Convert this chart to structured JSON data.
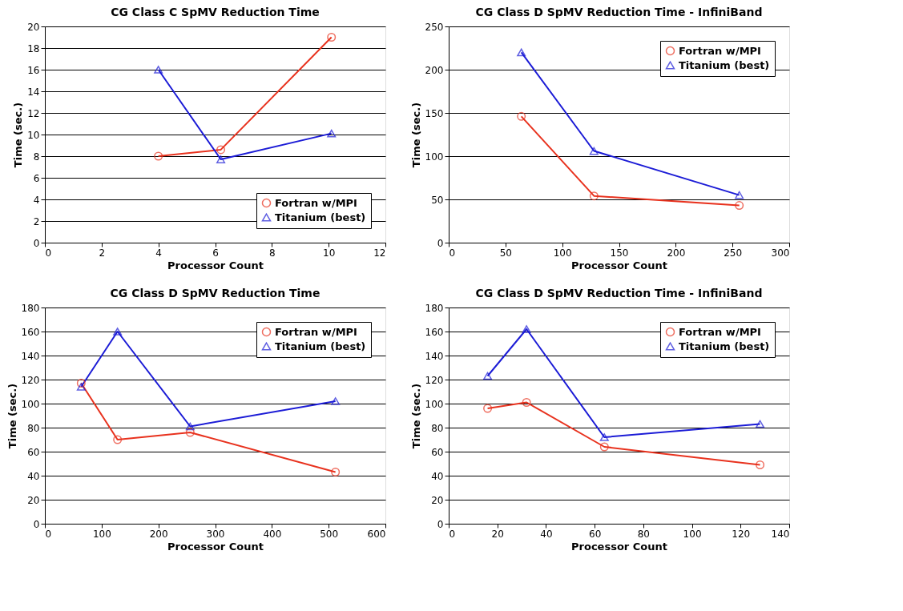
{
  "chart_data": [
    {
      "type": "line",
      "title": "CG Class C SpMV Reduction Time",
      "xlabel": "Processor Count",
      "ylabel": "Time (sec.)",
      "xlim": [
        0,
        12
      ],
      "xticks": [
        0,
        2,
        4,
        6,
        8,
        10,
        12
      ],
      "ylim": [
        0,
        20
      ],
      "yticks": [
        0,
        2,
        4,
        6,
        8,
        10,
        12,
        14,
        16,
        18,
        20
      ],
      "grid": "y",
      "legend": "bottom right",
      "line_style": "solid",
      "series": [
        {
          "name": "Fortran w/MPI",
          "color": "#e8321e",
          "marker": "circle",
          "x": [
            4,
            6.2,
            10.1
          ],
          "values": [
            8.0,
            8.6,
            19.0
          ]
        },
        {
          "name": "Titanium (best)",
          "color": "#1c1cd6",
          "marker": "triangle",
          "x": [
            4,
            6.2,
            10.1
          ],
          "values": [
            16.0,
            7.7,
            10.1
          ]
        }
      ]
    },
    {
      "type": "line",
      "title": "CG Class D SpMV Reduction Time - InfiniBand",
      "xlabel": "Processor Count",
      "ylabel": "Time (sec.)",
      "xlim": [
        0,
        300
      ],
      "xticks": [
        0,
        50,
        100,
        150,
        200,
        250,
        300
      ],
      "ylim": [
        0,
        250
      ],
      "yticks": [
        0,
        50,
        100,
        150,
        200,
        250
      ],
      "grid": "y",
      "legend": "top right",
      "line_style": "solid",
      "series": [
        {
          "name": "Fortran w/MPI",
          "color": "#e8321e",
          "marker": "circle",
          "x": [
            64,
            128,
            256
          ],
          "values": [
            146,
            54,
            43
          ]
        },
        {
          "name": "Titanium (best)",
          "color": "#1c1cd6",
          "marker": "triangle",
          "x": [
            64,
            128,
            256
          ],
          "values": [
            220,
            106,
            55
          ]
        }
      ]
    },
    {
      "type": "line",
      "title": "CG Class D SpMV Reduction Time",
      "xlabel": "Processor Count",
      "ylabel": "Time (sec.)",
      "xlim": [
        0,
        600
      ],
      "xticks": [
        0,
        100,
        200,
        300,
        400,
        500,
        600
      ],
      "ylim": [
        0,
        180
      ],
      "yticks": [
        0,
        20,
        40,
        60,
        80,
        100,
        120,
        140,
        160,
        180
      ],
      "grid": "y",
      "legend": "top right",
      "line_style": "solid",
      "series": [
        {
          "name": "Fortran w/MPI",
          "color": "#e8321e",
          "marker": "circle",
          "x": [
            64,
            128,
            256,
            512
          ],
          "values": [
            117,
            70,
            76,
            43
          ]
        },
        {
          "name": "Titanium (best)",
          "color": "#1c1cd6",
          "marker": "triangle",
          "x": [
            64,
            128,
            256,
            512
          ],
          "values": [
            114,
            160,
            81,
            102
          ]
        }
      ]
    },
    {
      "type": "line",
      "title": "CG Class D SpMV Reduction Time - InfiniBand",
      "xlabel": "Processor Count",
      "ylabel": "Time (sec.)",
      "xlim": [
        0,
        140
      ],
      "xticks": [
        0,
        20,
        40,
        60,
        80,
        100,
        120,
        140
      ],
      "ylim": [
        0,
        180
      ],
      "yticks": [
        0,
        20,
        40,
        60,
        80,
        100,
        120,
        140,
        160,
        180
      ],
      "grid": "y",
      "legend": "top right",
      "line_style": "solid",
      "series": [
        {
          "name": "Fortran w/MPI",
          "color": "#e8321e",
          "marker": "circle",
          "x": [
            16,
            32,
            64,
            128
          ],
          "values": [
            96,
            101,
            64,
            49
          ]
        },
        {
          "name": "Titanium (best)",
          "color": "#1c1cd6",
          "marker": "triangle",
          "x": [
            16,
            32,
            64,
            128
          ],
          "values": [
            123,
            162,
            72,
            83
          ]
        }
      ]
    }
  ]
}
